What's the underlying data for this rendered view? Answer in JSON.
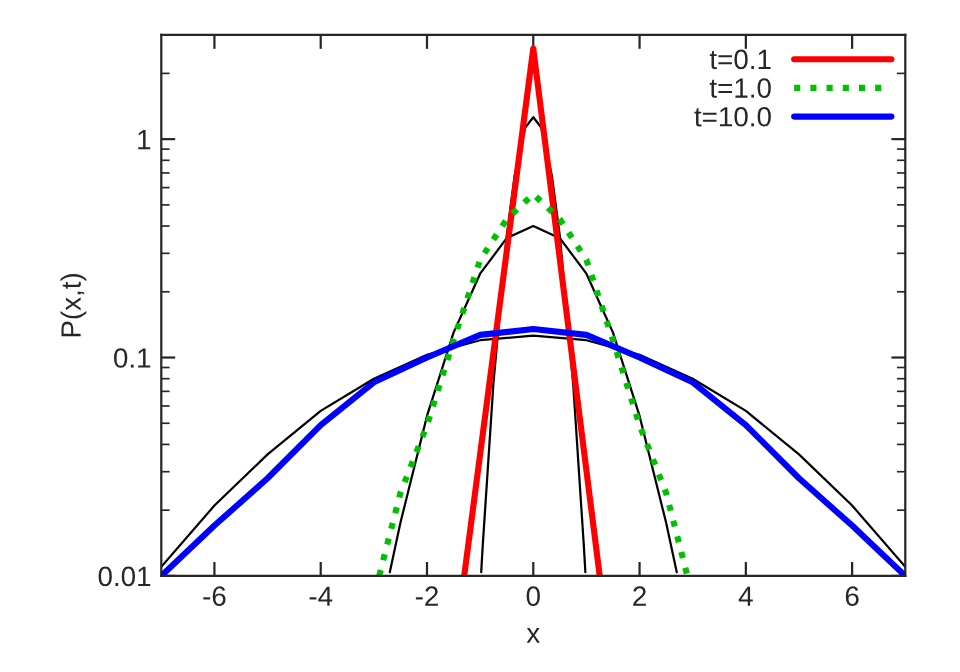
{
  "chart_data": {
    "type": "line",
    "xlabel": "x",
    "ylabel": "P(x,t)",
    "log": "y",
    "xlim": [
      -7,
      7
    ],
    "ylim": [
      0.01,
      3
    ],
    "xticks": [
      -6,
      -4,
      -2,
      0,
      2,
      4,
      6
    ],
    "yticks": [
      0.01,
      0.1,
      1
    ],
    "grid": false,
    "legend": "top right",
    "marker": "none",
    "series": [
      {
        "color": "#000000",
        "line_style": "solid",
        "x": [
          -0.98,
          -0.95,
          -0.75,
          -0.5,
          -0.35,
          -0.15,
          0,
          0.15,
          0.35,
          0.5,
          0.75,
          0.95,
          0.98
        ],
        "values": [
          0.0104,
          0.0139,
          0.076,
          0.36,
          0.68,
          1.13,
          1.26,
          1.13,
          0.68,
          0.36,
          0.076,
          0.0139,
          0.0104
        ]
      },
      {
        "color": "#000000",
        "line_style": "solid",
        "x": [
          -2.7,
          -2.5,
          -2,
          -1.5,
          -1,
          -0.5,
          0,
          0.5,
          1,
          1.5,
          2,
          2.5,
          2.7
        ],
        "values": [
          0.0104,
          0.0175,
          0.054,
          0.13,
          0.242,
          0.352,
          0.4,
          0.352,
          0.242,
          0.13,
          0.054,
          0.0175,
          0.0104
        ]
      },
      {
        "color": "#000000",
        "line_style": "solid",
        "x": [
          -7,
          -6,
          -5,
          -4,
          -3,
          -2,
          -1,
          0,
          1,
          2,
          3,
          4,
          5,
          6,
          7
        ],
        "values": [
          0.011,
          0.021,
          0.036,
          0.057,
          0.08,
          0.103,
          0.12,
          0.126,
          0.12,
          0.103,
          0.08,
          0.057,
          0.036,
          0.021,
          0.011
        ]
      },
      {
        "name": "t=0.1",
        "color": "#ff0000",
        "line_style": "solid",
        "x": [
          -1.3,
          0,
          1.25
        ],
        "values": [
          0.01,
          2.6,
          0.01
        ]
      },
      {
        "name": "t=1.0",
        "color": "#00c000",
        "line_style": "dotted",
        "x": [
          -2.9,
          -2.5,
          -2,
          -1.5,
          -1,
          -0.5,
          0,
          0.5,
          1,
          1.5,
          2,
          2.5,
          2.9
        ],
        "values": [
          0.01,
          0.024,
          0.049,
          0.12,
          0.28,
          0.43,
          0.56,
          0.43,
          0.28,
          0.12,
          0.049,
          0.024,
          0.01
        ]
      },
      {
        "name": "t=10.0",
        "color": "#0000ff",
        "line_style": "solid",
        "x": [
          -7,
          -6,
          -5,
          -4,
          -3,
          -2,
          -1,
          0,
          1,
          2,
          3,
          4,
          5,
          6,
          7
        ],
        "values": [
          0.01,
          0.017,
          0.028,
          0.049,
          0.077,
          0.1,
          0.127,
          0.135,
          0.127,
          0.1,
          0.077,
          0.049,
          0.028,
          0.017,
          0.01
        ]
      }
    ]
  }
}
